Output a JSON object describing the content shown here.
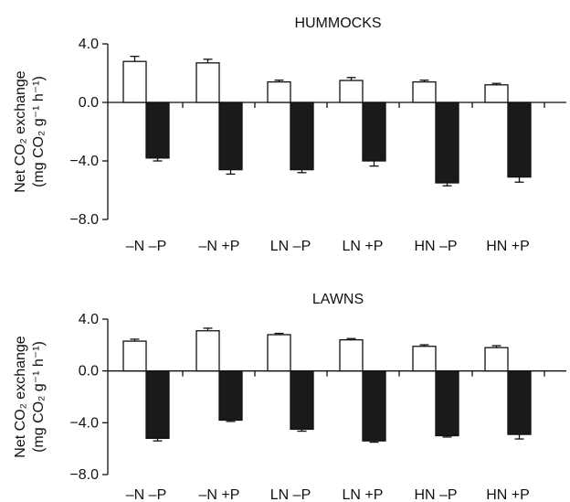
{
  "chart_data": [
    {
      "type": "bar",
      "title": "HUMMOCKS",
      "ylabel_line1": "Net CO₂ exchange",
      "ylabel_line2": "(mg CO₂ g⁻¹ h⁻¹)",
      "ylim": [
        -8.0,
        4.0
      ],
      "yticks": [
        4.0,
        0.0,
        -4.0,
        -8.0
      ],
      "ytick_labels": [
        "4.0",
        "0.0",
        "−4.0",
        "−8.0"
      ],
      "categories": [
        "–N –P",
        "–N +P",
        "LN –P",
        "LN +P",
        "HN –P",
        "HN +P"
      ],
      "series": [
        {
          "values": [
            2.8,
            2.7,
            1.4,
            1.5,
            1.4,
            1.2
          ],
          "errors": [
            0.35,
            0.25,
            0.12,
            0.2,
            0.12,
            0.1
          ],
          "color": "#ffffff"
        },
        {
          "values": [
            -3.8,
            -4.6,
            -4.6,
            -4.0,
            -5.5,
            -5.1
          ],
          "errors": [
            0.2,
            0.3,
            0.2,
            0.35,
            0.2,
            0.35
          ],
          "color": "#1a1a1a"
        }
      ]
    },
    {
      "type": "bar",
      "title": "LAWNS",
      "ylabel_line1": "Net CO₂ exchange",
      "ylabel_line2": "(mg CO₂ g⁻¹ h⁻¹)",
      "ylim": [
        -8.0,
        4.0
      ],
      "yticks": [
        4.0,
        0.0,
        -4.0,
        -8.0
      ],
      "ytick_labels": [
        "4.0",
        "0.0",
        "−4.0",
        "−8.0"
      ],
      "categories": [
        "–N –P",
        "–N +P",
        "LN –P",
        "LN +P",
        "HN –P",
        "HN +P"
      ],
      "series": [
        {
          "values": [
            2.3,
            3.1,
            2.8,
            2.4,
            1.9,
            1.8
          ],
          "errors": [
            0.15,
            0.2,
            0.1,
            0.1,
            0.12,
            0.15
          ],
          "color": "#ffffff"
        },
        {
          "values": [
            -5.2,
            -3.8,
            -4.5,
            -5.4,
            -5.0,
            -4.9
          ],
          "errors": [
            0.2,
            0.1,
            0.15,
            0.1,
            0.1,
            0.35
          ],
          "color": "#1a1a1a"
        }
      ]
    }
  ]
}
